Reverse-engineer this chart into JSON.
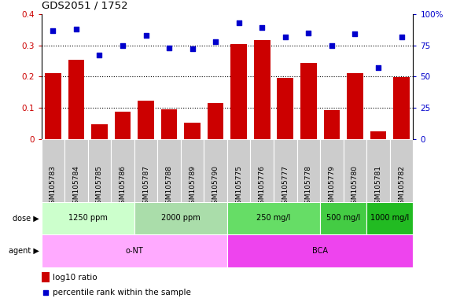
{
  "title": "GDS2051 / 1752",
  "samples": [
    "GSM105783",
    "GSM105784",
    "GSM105785",
    "GSM105786",
    "GSM105787",
    "GSM105788",
    "GSM105789",
    "GSM105790",
    "GSM105775",
    "GSM105776",
    "GSM105777",
    "GSM105778",
    "GSM105779",
    "GSM105780",
    "GSM105781",
    "GSM105782"
  ],
  "log10_ratio": [
    0.21,
    0.255,
    0.047,
    0.088,
    0.122,
    0.095,
    0.053,
    0.115,
    0.305,
    0.318,
    0.195,
    0.245,
    0.092,
    0.212,
    0.025,
    0.199
  ],
  "percentile": [
    87,
    88,
    67,
    75,
    83,
    73,
    72,
    78,
    93,
    89,
    82,
    85,
    75,
    84,
    57,
    82
  ],
  "bar_color": "#cc0000",
  "dot_color": "#0000cc",
  "ylim_left": [
    0,
    0.4
  ],
  "ylim_right": [
    0,
    100
  ],
  "yticks_left": [
    0,
    0.1,
    0.2,
    0.3,
    0.4
  ],
  "yticks_right": [
    0,
    25,
    50,
    75,
    100
  ],
  "ytick_labels_left": [
    "0",
    "0.1",
    "0.2",
    "0.3",
    "0.4"
  ],
  "ytick_labels_right": [
    "0",
    "25",
    "50",
    "75",
    "100%"
  ],
  "hlines": [
    0.1,
    0.2,
    0.3
  ],
  "dose_groups": [
    {
      "label": "1250 ppm",
      "start": 0,
      "end": 4,
      "color": "#ccffcc"
    },
    {
      "label": "2000 ppm",
      "start": 4,
      "end": 8,
      "color": "#aaddaa"
    },
    {
      "label": "250 mg/l",
      "start": 8,
      "end": 12,
      "color": "#66dd66"
    },
    {
      "label": "500 mg/l",
      "start": 12,
      "end": 14,
      "color": "#44cc44"
    },
    {
      "label": "1000 mg/l",
      "start": 14,
      "end": 16,
      "color": "#22bb22"
    }
  ],
  "agent_groups": [
    {
      "label": "o-NT",
      "start": 0,
      "end": 8,
      "color": "#ffaaff"
    },
    {
      "label": "BCA",
      "start": 8,
      "end": 16,
      "color": "#ee44ee"
    }
  ],
  "dose_label": "dose",
  "agent_label": "agent",
  "legend_bar_label": "log10 ratio",
  "legend_dot_label": "percentile rank within the sample",
  "xticklabel_bg": "#cccccc",
  "xticklabel_fontsize": 6.5
}
